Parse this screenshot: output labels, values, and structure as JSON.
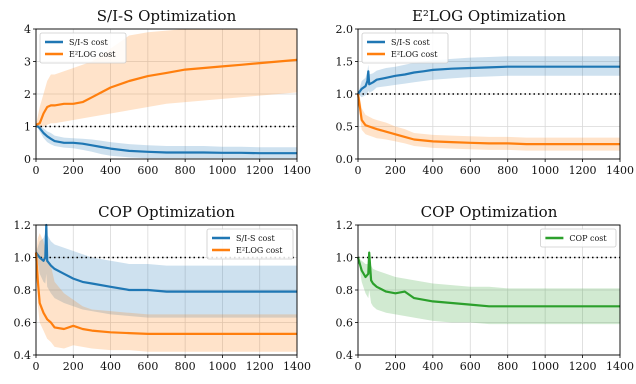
{
  "chart_data": [
    {
      "type": "line",
      "title": "S/I-S Optimization",
      "xlim": [
        0,
        1400
      ],
      "ylim": [
        0,
        4
      ],
      "xticks": [
        0,
        200,
        400,
        600,
        800,
        1000,
        1200,
        1400
      ],
      "yticks": [
        0,
        1,
        2,
        3,
        4
      ],
      "ytick_labels": [
        "0",
        "1",
        "2",
        "3",
        "4"
      ],
      "grid": true,
      "legend": "top-left",
      "reference_line": 1.0,
      "series": [
        {
          "name": "S/I-S cost",
          "color": "#1f77b4",
          "x": [
            0,
            20,
            40,
            60,
            80,
            100,
            150,
            200,
            250,
            300,
            350,
            400,
            500,
            600,
            700,
            800,
            900,
            1000,
            1100,
            1200,
            1300,
            1400
          ],
          "y": [
            1.05,
            0.95,
            0.8,
            0.7,
            0.62,
            0.55,
            0.5,
            0.5,
            0.47,
            0.42,
            0.37,
            0.32,
            0.25,
            0.22,
            0.2,
            0.2,
            0.2,
            0.19,
            0.19,
            0.18,
            0.18,
            0.18
          ],
          "band_low": [
            1.05,
            0.85,
            0.65,
            0.52,
            0.45,
            0.4,
            0.35,
            0.33,
            0.28,
            0.22,
            0.15,
            0.1,
            0.05,
            0.02,
            0.02,
            0.02,
            0.02,
            0.02,
            0.02,
            0.02,
            0.02,
            0.02
          ],
          "band_high": [
            1.05,
            1.05,
            0.95,
            0.85,
            0.8,
            0.72,
            0.66,
            0.64,
            0.62,
            0.6,
            0.56,
            0.52,
            0.46,
            0.42,
            0.4,
            0.4,
            0.4,
            0.38,
            0.38,
            0.36,
            0.36,
            0.36
          ]
        },
        {
          "name": "E²LOG cost",
          "color": "#ff7f0e",
          "x": [
            0,
            20,
            40,
            60,
            80,
            100,
            150,
            200,
            250,
            300,
            350,
            400,
            500,
            600,
            700,
            800,
            900,
            1000,
            1100,
            1200,
            1300,
            1400
          ],
          "y": [
            1.05,
            1.1,
            1.4,
            1.6,
            1.65,
            1.65,
            1.7,
            1.7,
            1.75,
            1.9,
            2.05,
            2.2,
            2.4,
            2.55,
            2.65,
            2.75,
            2.8,
            2.85,
            2.9,
            2.95,
            3.0,
            3.05
          ],
          "band_low": [
            1.05,
            1.0,
            1.0,
            1.05,
            1.1,
            1.1,
            1.15,
            1.2,
            1.25,
            1.3,
            1.35,
            1.4,
            1.5,
            1.6,
            1.7,
            1.75,
            1.8,
            1.85,
            1.9,
            1.95,
            2.0,
            2.05
          ],
          "band_high": [
            1.05,
            1.6,
            2.0,
            2.4,
            2.6,
            2.6,
            2.7,
            2.8,
            2.9,
            3.0,
            3.2,
            3.4,
            3.8,
            3.9,
            3.95,
            4.0,
            4.0,
            4.0,
            4.0,
            4.0,
            4.0,
            4.0
          ]
        }
      ]
    },
    {
      "type": "line",
      "title": "E²LOG Optimization",
      "xlim": [
        0,
        1400
      ],
      "ylim": [
        0,
        2
      ],
      "xticks": [
        0,
        200,
        400,
        600,
        800,
        1000,
        1200,
        1400
      ],
      "yticks": [
        0,
        0.5,
        1.0,
        1.5,
        2.0
      ],
      "ytick_labels": [
        "0.0",
        "0.5",
        "1.0",
        "1.5",
        "2.0"
      ],
      "grid": true,
      "legend": "top-left",
      "reference_line": 1.0,
      "series": [
        {
          "name": "S/I-S cost",
          "color": "#1f77b4",
          "x": [
            0,
            20,
            40,
            50,
            55,
            60,
            80,
            100,
            150,
            200,
            250,
            300,
            350,
            400,
            500,
            600,
            700,
            800,
            900,
            1000,
            1100,
            1200,
            1300,
            1400
          ],
          "y": [
            1.0,
            1.08,
            1.12,
            1.2,
            1.35,
            1.15,
            1.18,
            1.22,
            1.25,
            1.28,
            1.3,
            1.33,
            1.35,
            1.37,
            1.39,
            1.4,
            1.41,
            1.42,
            1.42,
            1.42,
            1.42,
            1.42,
            1.42,
            1.42
          ],
          "band_low": [
            1.0,
            0.95,
            0.98,
            1.0,
            1.05,
            1.02,
            1.05,
            1.1,
            1.12,
            1.14,
            1.16,
            1.18,
            1.2,
            1.22,
            1.24,
            1.26,
            1.27,
            1.28,
            1.28,
            1.28,
            1.28,
            1.28,
            1.28,
            1.28
          ],
          "band_high": [
            1.0,
            1.2,
            1.25,
            1.35,
            1.45,
            1.3,
            1.32,
            1.36,
            1.4,
            1.42,
            1.45,
            1.48,
            1.5,
            1.52,
            1.54,
            1.56,
            1.57,
            1.58,
            1.58,
            1.58,
            1.58,
            1.58,
            1.58,
            1.58
          ]
        },
        {
          "name": "E²LOG cost",
          "color": "#ff7f0e",
          "x": [
            0,
            10,
            20,
            40,
            60,
            80,
            100,
            150,
            200,
            250,
            300,
            400,
            500,
            600,
            700,
            800,
            900,
            1000,
            1100,
            1200,
            1300,
            1400
          ],
          "y": [
            1.0,
            0.8,
            0.6,
            0.52,
            0.5,
            0.48,
            0.46,
            0.42,
            0.38,
            0.34,
            0.3,
            0.27,
            0.26,
            0.25,
            0.24,
            0.24,
            0.23,
            0.23,
            0.23,
            0.23,
            0.23,
            0.23
          ],
          "band_low": [
            1.0,
            0.65,
            0.45,
            0.38,
            0.36,
            0.34,
            0.32,
            0.3,
            0.27,
            0.24,
            0.2,
            0.17,
            0.16,
            0.15,
            0.14,
            0.14,
            0.13,
            0.13,
            0.13,
            0.13,
            0.13,
            0.13
          ],
          "band_high": [
            1.0,
            0.95,
            0.78,
            0.68,
            0.65,
            0.62,
            0.6,
            0.56,
            0.5,
            0.46,
            0.4,
            0.37,
            0.36,
            0.35,
            0.34,
            0.34,
            0.33,
            0.33,
            0.33,
            0.33,
            0.33,
            0.33
          ]
        }
      ]
    },
    {
      "type": "line",
      "title": "COP Optimization",
      "xlim": [
        0,
        1400
      ],
      "ylim": [
        0.4,
        1.2
      ],
      "xticks": [
        0,
        200,
        400,
        600,
        800,
        1000,
        1200,
        1400
      ],
      "yticks": [
        0.4,
        0.6,
        0.8,
        1.0,
        1.2
      ],
      "ytick_labels": [
        "0.4",
        "0.6",
        "0.8",
        "1.0",
        "1.2"
      ],
      "grid": true,
      "legend": "top-right",
      "reference_line": 1.0,
      "series": [
        {
          "name": "S/I-S cost",
          "color": "#1f77b4",
          "x": [
            0,
            20,
            40,
            50,
            55,
            60,
            80,
            100,
            150,
            200,
            250,
            300,
            400,
            500,
            600,
            700,
            800,
            900,
            1000,
            1100,
            1200,
            1300,
            1400
          ],
          "y": [
            1.03,
            1.0,
            0.98,
            1.0,
            1.2,
            0.98,
            0.95,
            0.93,
            0.9,
            0.87,
            0.85,
            0.84,
            0.82,
            0.8,
            0.8,
            0.79,
            0.79,
            0.79,
            0.79,
            0.79,
            0.79,
            0.79,
            0.79
          ],
          "band_low": [
            1.03,
            0.9,
            0.85,
            0.84,
            0.9,
            0.82,
            0.78,
            0.75,
            0.72,
            0.7,
            0.68,
            0.67,
            0.65,
            0.64,
            0.63,
            0.63,
            0.63,
            0.63,
            0.63,
            0.63,
            0.63,
            0.63,
            0.63
          ],
          "band_high": [
            1.03,
            1.1,
            1.12,
            1.15,
            1.2,
            1.14,
            1.1,
            1.08,
            1.06,
            1.04,
            1.02,
            1.0,
            0.98,
            0.96,
            0.96,
            0.95,
            0.95,
            0.95,
            0.95,
            0.95,
            0.95,
            0.95,
            0.95
          ]
        },
        {
          "name": "E²LOG cost",
          "color": "#ff7f0e",
          "x": [
            0,
            10,
            20,
            40,
            60,
            80,
            100,
            150,
            200,
            250,
            300,
            400,
            500,
            600,
            700,
            800,
            900,
            1000,
            1100,
            1200,
            1300,
            1400
          ],
          "y": [
            1.03,
            0.85,
            0.72,
            0.66,
            0.62,
            0.6,
            0.57,
            0.56,
            0.58,
            0.56,
            0.55,
            0.54,
            0.535,
            0.53,
            0.53,
            0.53,
            0.53,
            0.53,
            0.53,
            0.53,
            0.53,
            0.53
          ],
          "band_low": [
            1.03,
            0.7,
            0.6,
            0.55,
            0.5,
            0.48,
            0.45,
            0.44,
            0.46,
            0.45,
            0.44,
            0.43,
            0.43,
            0.42,
            0.42,
            0.42,
            0.42,
            0.42,
            0.42,
            0.42,
            0.42,
            0.42
          ],
          "band_high": [
            1.03,
            1.12,
            1.15,
            1.1,
            1.0,
            0.95,
            0.85,
            0.78,
            0.74,
            0.7,
            0.68,
            0.67,
            0.66,
            0.65,
            0.65,
            0.65,
            0.65,
            0.65,
            0.65,
            0.65,
            0.65,
            0.65
          ]
        }
      ]
    },
    {
      "type": "line",
      "title": "COP Optimization",
      "xlim": [
        0,
        1400
      ],
      "ylim": [
        0.4,
        1.2
      ],
      "xticks": [
        0,
        200,
        400,
        600,
        800,
        1000,
        1200,
        1400
      ],
      "yticks": [
        0.4,
        0.6,
        0.8,
        1.0,
        1.2
      ],
      "ytick_labels": [
        "0.4",
        "0.6",
        "0.8",
        "1.0",
        "1.2"
      ],
      "grid": true,
      "legend": "top-right",
      "reference_line": 1.0,
      "series": [
        {
          "name": "COP cost",
          "color": "#2ca02c",
          "x": [
            0,
            20,
            40,
            55,
            60,
            70,
            80,
            100,
            150,
            200,
            250,
            300,
            400,
            500,
            600,
            700,
            800,
            900,
            1000,
            1100,
            1200,
            1300,
            1400
          ],
          "y": [
            1.0,
            0.92,
            0.88,
            0.9,
            1.03,
            0.86,
            0.84,
            0.82,
            0.79,
            0.78,
            0.79,
            0.75,
            0.73,
            0.72,
            0.71,
            0.7,
            0.7,
            0.7,
            0.7,
            0.7,
            0.7,
            0.7,
            0.7
          ],
          "band_low": [
            1.0,
            0.85,
            0.78,
            0.75,
            0.8,
            0.72,
            0.7,
            0.68,
            0.66,
            0.65,
            0.64,
            0.63,
            0.61,
            0.6,
            0.6,
            0.59,
            0.59,
            0.59,
            0.59,
            0.59,
            0.59,
            0.59,
            0.59
          ],
          "band_high": [
            1.0,
            0.98,
            0.96,
            0.96,
            1.05,
            0.95,
            0.93,
            0.92,
            0.9,
            0.88,
            0.87,
            0.86,
            0.84,
            0.83,
            0.82,
            0.82,
            0.81,
            0.81,
            0.81,
            0.81,
            0.81,
            0.81,
            0.81
          ]
        }
      ]
    }
  ]
}
